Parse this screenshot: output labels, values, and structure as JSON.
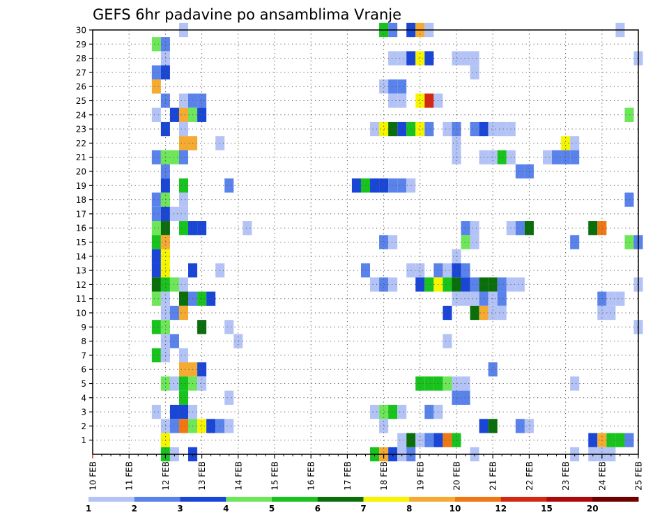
{
  "chart_data": {
    "type": "heatmap",
    "title": "GEFS 6hr padavine po ansamblima Vranje",
    "xlabel": "",
    "ylabel": "",
    "x_ticks": [
      "10 FEB",
      "11 FEB",
      "12 FEB",
      "13 FEB",
      "14 FEB",
      "15 FEB",
      "16 FEB",
      "17 FEB",
      "18 FEB",
      "19 FEB",
      "20 FEB",
      "21 FEB",
      "22 FEB",
      "23 FEB",
      "24 FEB",
      "25 FEB"
    ],
    "x_range_days": [
      10,
      25
    ],
    "y_ticks": [
      1,
      2,
      3,
      4,
      5,
      6,
      7,
      8,
      9,
      10,
      11,
      12,
      13,
      14,
      15,
      16,
      17,
      18,
      19,
      20,
      21,
      22,
      23,
      24,
      25,
      26,
      27,
      28,
      29,
      30
    ],
    "y_range": [
      0,
      30
    ],
    "grid": true,
    "time_step_hours": 6,
    "legend": {
      "placement": "bottom",
      "labels": [
        "1",
        "2",
        "3",
        "4",
        "5",
        "6",
        "7",
        "8",
        "10",
        "12",
        "15",
        "20"
      ],
      "colors": [
        "#b4c3f5",
        "#5a82eb",
        "#1946d7",
        "#6ee65a",
        "#19c31e",
        "#0a6e0a",
        "#f5f500",
        "#f5aa32",
        "#f07814",
        "#d22814",
        "#aa0a0a",
        "#6e0000"
      ]
    },
    "cells": [
      {
        "m": 30,
        "day": 12.5,
        "c": 1
      },
      {
        "m": 30,
        "day": 18,
        "c": 5
      },
      {
        "m": 30,
        "day": 18.25,
        "c": 2
      },
      {
        "m": 30,
        "day": 18.75,
        "c": 3
      },
      {
        "m": 30,
        "day": 19,
        "c": 8
      },
      {
        "m": 30,
        "day": 19.25,
        "c": 1
      },
      {
        "m": 30,
        "day": 24.5,
        "c": 1
      },
      {
        "m": 29,
        "day": 11.75,
        "c": 4
      },
      {
        "m": 29,
        "day": 12,
        "c": 2
      },
      {
        "m": 28,
        "day": 12,
        "c": 1
      },
      {
        "m": 28,
        "day": 18.25,
        "c": 1
      },
      {
        "m": 28,
        "day": 18.5,
        "c": 1
      },
      {
        "m": 28,
        "day": 18.75,
        "c": 3
      },
      {
        "m": 28,
        "day": 19,
        "c": 7
      },
      {
        "m": 28,
        "day": 19.25,
        "c": 3
      },
      {
        "m": 28,
        "day": 20,
        "c": 1
      },
      {
        "m": 28,
        "day": 20.25,
        "c": 1
      },
      {
        "m": 28,
        "day": 20.5,
        "c": 1
      },
      {
        "m": 28,
        "day": 25,
        "c": 1
      },
      {
        "m": 27,
        "day": 11.75,
        "c": 2
      },
      {
        "m": 27,
        "day": 12,
        "c": 3
      },
      {
        "m": 27,
        "day": 20.5,
        "c": 1
      },
      {
        "m": 26,
        "day": 11.75,
        "c": 8
      },
      {
        "m": 26,
        "day": 18,
        "c": 1
      },
      {
        "m": 26,
        "day": 18.25,
        "c": 2
      },
      {
        "m": 26,
        "day": 18.5,
        "c": 2
      },
      {
        "m": 25,
        "day": 12,
        "c": 2
      },
      {
        "m": 25,
        "day": 12.5,
        "c": 1
      },
      {
        "m": 25,
        "day": 12.75,
        "c": 2
      },
      {
        "m": 25,
        "day": 13,
        "c": 2
      },
      {
        "m": 25,
        "day": 18.25,
        "c": 1
      },
      {
        "m": 25,
        "day": 18.5,
        "c": 1
      },
      {
        "m": 25,
        "day": 19,
        "c": 7
      },
      {
        "m": 25,
        "day": 19.25,
        "c": 10
      },
      {
        "m": 25,
        "day": 19.5,
        "c": 1
      },
      {
        "m": 24,
        "day": 11.75,
        "c": 1
      },
      {
        "m": 24,
        "day": 12.25,
        "c": 3
      },
      {
        "m": 24,
        "day": 12.5,
        "c": 8
      },
      {
        "m": 24,
        "day": 12.75,
        "c": 4
      },
      {
        "m": 24,
        "day": 13,
        "c": 3
      },
      {
        "m": 24,
        "day": 24.75,
        "c": 4
      },
      {
        "m": 23,
        "day": 12,
        "c": 3
      },
      {
        "m": 23,
        "day": 12.5,
        "c": 1
      },
      {
        "m": 23,
        "day": 17.75,
        "c": 1
      },
      {
        "m": 23,
        "day": 18,
        "c": 7
      },
      {
        "m": 23,
        "day": 18.25,
        "c": 6
      },
      {
        "m": 23,
        "day": 18.5,
        "c": 3
      },
      {
        "m": 23,
        "day": 18.75,
        "c": 5
      },
      {
        "m": 23,
        "day": 19,
        "c": 7
      },
      {
        "m": 23,
        "day": 19.25,
        "c": 2
      },
      {
        "m": 23,
        "day": 19.75,
        "c": 1
      },
      {
        "m": 23,
        "day": 20,
        "c": 2
      },
      {
        "m": 23,
        "day": 20.5,
        "c": 2
      },
      {
        "m": 23,
        "day": 20.75,
        "c": 3
      },
      {
        "m": 23,
        "day": 21,
        "c": 1
      },
      {
        "m": 23,
        "day": 21.25,
        "c": 1
      },
      {
        "m": 23,
        "day": 21.5,
        "c": 1
      },
      {
        "m": 22,
        "day": 12.5,
        "c": 8
      },
      {
        "m": 22,
        "day": 12.75,
        "c": 8
      },
      {
        "m": 22,
        "day": 13.5,
        "c": 1
      },
      {
        "m": 22,
        "day": 20,
        "c": 1
      },
      {
        "m": 22,
        "day": 23,
        "c": 7
      },
      {
        "m": 22,
        "day": 23.25,
        "c": 1
      },
      {
        "m": 21,
        "day": 11.75,
        "c": 2
      },
      {
        "m": 21,
        "day": 12,
        "c": 4
      },
      {
        "m": 21,
        "day": 12.25,
        "c": 4
      },
      {
        "m": 21,
        "day": 12.5,
        "c": 2
      },
      {
        "m": 21,
        "day": 20,
        "c": 1
      },
      {
        "m": 21,
        "day": 20.75,
        "c": 1
      },
      {
        "m": 21,
        "day": 21,
        "c": 1
      },
      {
        "m": 21,
        "day": 21.25,
        "c": 5
      },
      {
        "m": 21,
        "day": 21.5,
        "c": 1
      },
      {
        "m": 21,
        "day": 22.5,
        "c": 1
      },
      {
        "m": 21,
        "day": 22.75,
        "c": 2
      },
      {
        "m": 21,
        "day": 23,
        "c": 2
      },
      {
        "m": 21,
        "day": 23.25,
        "c": 2
      },
      {
        "m": 20,
        "day": 12,
        "c": 2
      },
      {
        "m": 20,
        "day": 21.75,
        "c": 2
      },
      {
        "m": 20,
        "day": 22,
        "c": 2
      },
      {
        "m": 19,
        "day": 12,
        "c": 3
      },
      {
        "m": 19,
        "day": 12.5,
        "c": 5
      },
      {
        "m": 19,
        "day": 13.75,
        "c": 2
      },
      {
        "m": 19,
        "day": 17.25,
        "c": 3
      },
      {
        "m": 19,
        "day": 17.5,
        "c": 5
      },
      {
        "m": 19,
        "day": 17.75,
        "c": 3
      },
      {
        "m": 19,
        "day": 18,
        "c": 3
      },
      {
        "m": 19,
        "day": 18.25,
        "c": 2
      },
      {
        "m": 19,
        "day": 18.5,
        "c": 2
      },
      {
        "m": 19,
        "day": 18.75,
        "c": 1
      },
      {
        "m": 18,
        "day": 11.75,
        "c": 2
      },
      {
        "m": 18,
        "day": 12,
        "c": 4
      },
      {
        "m": 18,
        "day": 12.5,
        "c": 1
      },
      {
        "m": 18,
        "day": 24.75,
        "c": 2
      },
      {
        "m": 17,
        "day": 11.75,
        "c": 2
      },
      {
        "m": 17,
        "day": 12,
        "c": 3
      },
      {
        "m": 17,
        "day": 12.25,
        "c": 1
      },
      {
        "m": 17,
        "day": 12.5,
        "c": 1
      },
      {
        "m": 16,
        "day": 11.75,
        "c": 4
      },
      {
        "m": 16,
        "day": 12,
        "c": 6
      },
      {
        "m": 16,
        "day": 12.5,
        "c": 5
      },
      {
        "m": 16,
        "day": 12.75,
        "c": 3
      },
      {
        "m": 16,
        "day": 13,
        "c": 3
      },
      {
        "m": 16,
        "day": 14.25,
        "c": 1
      },
      {
        "m": 16,
        "day": 20.25,
        "c": 2
      },
      {
        "m": 16,
        "day": 20.5,
        "c": 1
      },
      {
        "m": 16,
        "day": 21.5,
        "c": 1
      },
      {
        "m": 16,
        "day": 21.75,
        "c": 2
      },
      {
        "m": 16,
        "day": 22,
        "c": 6
      },
      {
        "m": 16,
        "day": 23.75,
        "c": 6
      },
      {
        "m": 16,
        "day": 24,
        "c": 9
      },
      {
        "m": 15,
        "day": 11.75,
        "c": 5
      },
      {
        "m": 15,
        "day": 12,
        "c": 8
      },
      {
        "m": 15,
        "day": 18,
        "c": 2
      },
      {
        "m": 15,
        "day": 18.25,
        "c": 1
      },
      {
        "m": 15,
        "day": 20.25,
        "c": 4
      },
      {
        "m": 15,
        "day": 20.5,
        "c": 1
      },
      {
        "m": 15,
        "day": 23.25,
        "c": 2
      },
      {
        "m": 15,
        "day": 24.75,
        "c": 4
      },
      {
        "m": 15,
        "day": 25,
        "c": 2
      },
      {
        "m": 14,
        "day": 11.75,
        "c": 3
      },
      {
        "m": 14,
        "day": 12,
        "c": 7
      },
      {
        "m": 14,
        "day": 20,
        "c": 1
      },
      {
        "m": 13,
        "day": 11.75,
        "c": 3
      },
      {
        "m": 13,
        "day": 12,
        "c": 7
      },
      {
        "m": 13,
        "day": 12.75,
        "c": 3
      },
      {
        "m": 13,
        "day": 13.5,
        "c": 1
      },
      {
        "m": 13,
        "day": 17.5,
        "c": 2
      },
      {
        "m": 13,
        "day": 18.75,
        "c": 1
      },
      {
        "m": 13,
        "day": 19,
        "c": 1
      },
      {
        "m": 13,
        "day": 19.5,
        "c": 2
      },
      {
        "m": 13,
        "day": 19.75,
        "c": 1
      },
      {
        "m": 13,
        "day": 20,
        "c": 3
      },
      {
        "m": 13,
        "day": 20.25,
        "c": 2
      },
      {
        "m": 12,
        "day": 11.75,
        "c": 6
      },
      {
        "m": 12,
        "day": 12,
        "c": 5
      },
      {
        "m": 12,
        "day": 12.25,
        "c": 4
      },
      {
        "m": 12,
        "day": 12.5,
        "c": 1
      },
      {
        "m": 12,
        "day": 17.75,
        "c": 1
      },
      {
        "m": 12,
        "day": 18,
        "c": 2
      },
      {
        "m": 12,
        "day": 18.25,
        "c": 1
      },
      {
        "m": 12,
        "day": 19,
        "c": 3
      },
      {
        "m": 12,
        "day": 19.25,
        "c": 5
      },
      {
        "m": 12,
        "day": 19.5,
        "c": 7
      },
      {
        "m": 12,
        "day": 19.75,
        "c": 5
      },
      {
        "m": 12,
        "day": 20,
        "c": 6
      },
      {
        "m": 12,
        "day": 20.25,
        "c": 3
      },
      {
        "m": 12,
        "day": 20.5,
        "c": 2
      },
      {
        "m": 12,
        "day": 20.75,
        "c": 6
      },
      {
        "m": 12,
        "day": 21,
        "c": 6
      },
      {
        "m": 12,
        "day": 21.25,
        "c": 2
      },
      {
        "m": 12,
        "day": 21.5,
        "c": 1
      },
      {
        "m": 12,
        "day": 21.75,
        "c": 1
      },
      {
        "m": 12,
        "day": 25,
        "c": 1
      },
      {
        "m": 11,
        "day": 11.75,
        "c": 4
      },
      {
        "m": 11,
        "day": 12,
        "c": 1
      },
      {
        "m": 11,
        "day": 12.5,
        "c": 6
      },
      {
        "m": 11,
        "day": 12.75,
        "c": 2
      },
      {
        "m": 11,
        "day": 13,
        "c": 5
      },
      {
        "m": 11,
        "day": 13.25,
        "c": 3
      },
      {
        "m": 11,
        "day": 20,
        "c": 1
      },
      {
        "m": 11,
        "day": 20.25,
        "c": 1
      },
      {
        "m": 11,
        "day": 20.5,
        "c": 1
      },
      {
        "m": 11,
        "day": 20.75,
        "c": 2
      },
      {
        "m": 11,
        "day": 21,
        "c": 1
      },
      {
        "m": 11,
        "day": 21.25,
        "c": 2
      },
      {
        "m": 11,
        "day": 24,
        "c": 2
      },
      {
        "m": 11,
        "day": 24.25,
        "c": 1
      },
      {
        "m": 11,
        "day": 24.5,
        "c": 1
      },
      {
        "m": 10,
        "day": 12,
        "c": 1
      },
      {
        "m": 10,
        "day": 12.25,
        "c": 2
      },
      {
        "m": 10,
        "day": 12.5,
        "c": 8
      },
      {
        "m": 10,
        "day": 19.75,
        "c": 3
      },
      {
        "m": 10,
        "day": 20.5,
        "c": 6
      },
      {
        "m": 10,
        "day": 20.75,
        "c": 8
      },
      {
        "m": 10,
        "day": 21,
        "c": 1
      },
      {
        "m": 10,
        "day": 21.25,
        "c": 1
      },
      {
        "m": 10,
        "day": 24,
        "c": 1
      },
      {
        "m": 10,
        "day": 24.25,
        "c": 1
      },
      {
        "m": 9,
        "day": 11.75,
        "c": 5
      },
      {
        "m": 9,
        "day": 12,
        "c": 4
      },
      {
        "m": 9,
        "day": 13,
        "c": 6
      },
      {
        "m": 9,
        "day": 13.75,
        "c": 1
      },
      {
        "m": 9,
        "day": 25,
        "c": 1
      },
      {
        "m": 8,
        "day": 12,
        "c": 1
      },
      {
        "m": 8,
        "day": 12.25,
        "c": 2
      },
      {
        "m": 8,
        "day": 14,
        "c": 1
      },
      {
        "m": 8,
        "day": 19.75,
        "c": 1
      },
      {
        "m": 7,
        "day": 11.75,
        "c": 5
      },
      {
        "m": 7,
        "day": 12,
        "c": 1
      },
      {
        "m": 7,
        "day": 12.5,
        "c": 1
      },
      {
        "m": 6,
        "day": 12.5,
        "c": 8
      },
      {
        "m": 6,
        "day": 12.75,
        "c": 8
      },
      {
        "m": 6,
        "day": 13,
        "c": 3
      },
      {
        "m": 6,
        "day": 21,
        "c": 2
      },
      {
        "m": 5,
        "day": 12,
        "c": 4
      },
      {
        "m": 5,
        "day": 12.25,
        "c": 1
      },
      {
        "m": 5,
        "day": 12.5,
        "c": 5
      },
      {
        "m": 5,
        "day": 12.75,
        "c": 4
      },
      {
        "m": 5,
        "day": 13,
        "c": 1
      },
      {
        "m": 5,
        "day": 19,
        "c": 5
      },
      {
        "m": 5,
        "day": 19.25,
        "c": 5
      },
      {
        "m": 5,
        "day": 19.5,
        "c": 5
      },
      {
        "m": 5,
        "day": 19.75,
        "c": 4
      },
      {
        "m": 5,
        "day": 20,
        "c": 1
      },
      {
        "m": 5,
        "day": 20.25,
        "c": 1
      },
      {
        "m": 5,
        "day": 23.25,
        "c": 1
      },
      {
        "m": 4,
        "day": 12.5,
        "c": 5
      },
      {
        "m": 4,
        "day": 13.75,
        "c": 1
      },
      {
        "m": 4,
        "day": 20,
        "c": 2
      },
      {
        "m": 4,
        "day": 20.25,
        "c": 2
      },
      {
        "m": 3,
        "day": 11.75,
        "c": 1
      },
      {
        "m": 3,
        "day": 12.25,
        "c": 3
      },
      {
        "m": 3,
        "day": 12.5,
        "c": 3
      },
      {
        "m": 3,
        "day": 12.75,
        "c": 1
      },
      {
        "m": 3,
        "day": 17.75,
        "c": 1
      },
      {
        "m": 3,
        "day": 18,
        "c": 4
      },
      {
        "m": 3,
        "day": 18.25,
        "c": 5
      },
      {
        "m": 3,
        "day": 18.5,
        "c": 1
      },
      {
        "m": 3,
        "day": 19.25,
        "c": 2
      },
      {
        "m": 3,
        "day": 19.5,
        "c": 1
      },
      {
        "m": 2,
        "day": 12,
        "c": 1
      },
      {
        "m": 2,
        "day": 12.25,
        "c": 2
      },
      {
        "m": 2,
        "day": 12.5,
        "c": 9
      },
      {
        "m": 2,
        "day": 12.75,
        "c": 4
      },
      {
        "m": 2,
        "day": 13,
        "c": 7
      },
      {
        "m": 2,
        "day": 13.25,
        "c": 3
      },
      {
        "m": 2,
        "day": 13.5,
        "c": 2
      },
      {
        "m": 2,
        "day": 13.75,
        "c": 1
      },
      {
        "m": 2,
        "day": 18,
        "c": 1
      },
      {
        "m": 2,
        "day": 20.75,
        "c": 3
      },
      {
        "m": 2,
        "day": 21,
        "c": 6
      },
      {
        "m": 2,
        "day": 21.75,
        "c": 2
      },
      {
        "m": 2,
        "day": 22,
        "c": 1
      },
      {
        "m": 1,
        "day": 12,
        "c": 7
      },
      {
        "m": 1,
        "day": 18.5,
        "c": 1
      },
      {
        "m": 1,
        "day": 18.75,
        "c": 6
      },
      {
        "m": 1,
        "day": 19,
        "c": 1
      },
      {
        "m": 1,
        "day": 19.25,
        "c": 2
      },
      {
        "m": 1,
        "day": 19.5,
        "c": 3
      },
      {
        "m": 1,
        "day": 19.75,
        "c": 9
      },
      {
        "m": 1,
        "day": 20,
        "c": 5
      },
      {
        "m": 1,
        "day": 23.75,
        "c": 3
      },
      {
        "m": 1,
        "day": 24,
        "c": 8
      },
      {
        "m": 1,
        "day": 24.25,
        "c": 5
      },
      {
        "m": 1,
        "day": 24.5,
        "c": 5
      },
      {
        "m": 1,
        "day": 24.75,
        "c": 2
      },
      {
        "m": 0,
        "day": 12,
        "c": 5
      },
      {
        "m": 0,
        "day": 12.25,
        "c": 1
      },
      {
        "m": 0,
        "day": 12.75,
        "c": 3
      },
      {
        "m": 0,
        "day": 17.75,
        "c": 5
      },
      {
        "m": 0,
        "day": 18,
        "c": 8
      },
      {
        "m": 0,
        "day": 18.25,
        "c": 3
      },
      {
        "m": 0,
        "day": 18.5,
        "c": 1
      },
      {
        "m": 0,
        "day": 18.75,
        "c": 2
      },
      {
        "m": 0,
        "day": 20.5,
        "c": 1
      },
      {
        "m": 0,
        "day": 23.25,
        "c": 1
      },
      {
        "m": 0,
        "day": 23.75,
        "c": 1
      },
      {
        "m": 0,
        "day": 24,
        "c": 1
      },
      {
        "m": 0,
        "day": 24.25,
        "c": 1
      }
    ]
  }
}
